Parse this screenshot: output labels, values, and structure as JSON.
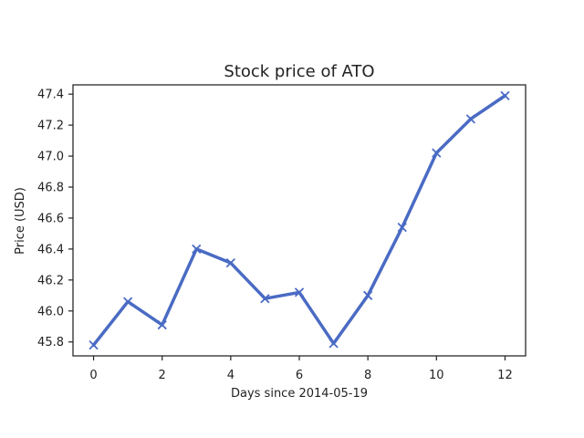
{
  "chart_data": {
    "type": "line",
    "title": "Stock price of ATO",
    "xlabel": "Days since 2014-05-19",
    "ylabel": "Price (USD)",
    "x": [
      0,
      1,
      2,
      3,
      4,
      5,
      6,
      7,
      8,
      9,
      10,
      11,
      12
    ],
    "series": [
      {
        "name": "",
        "values": [
          45.78,
          46.06,
          45.91,
          46.4,
          46.31,
          46.08,
          46.12,
          45.79,
          46.1,
          46.54,
          47.02,
          47.24,
          47.39
        ],
        "color": "#4a6bc4",
        "marker": "x"
      }
    ],
    "xlim": [
      -0.6,
      12.6
    ],
    "ylim": [
      45.71,
      47.46
    ],
    "xticks": [
      0,
      2,
      4,
      6,
      8,
      10,
      12
    ],
    "yticks": [
      45.8,
      46.0,
      46.2,
      46.4,
      46.6,
      46.8,
      47.0,
      47.2,
      47.4
    ],
    "xtick_labels": [
      "0",
      "2",
      "4",
      "6",
      "8",
      "10",
      "12"
    ],
    "ytick_labels": [
      "45.8",
      "46.0",
      "46.2",
      "46.4",
      "46.6",
      "46.8",
      "47.0",
      "47.2",
      "47.4"
    ],
    "grid": false,
    "legend": false
  }
}
